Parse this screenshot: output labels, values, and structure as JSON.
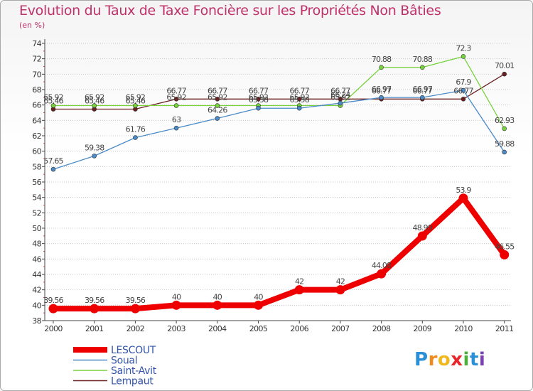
{
  "chart_data": {
    "type": "line",
    "title": "Evolution du Taux de Taxe Foncière sur les Propriétés Non Bâties",
    "ylabel": "(en %)",
    "xlabel": "",
    "categories": [
      "2000",
      "2001",
      "2002",
      "2003",
      "2004",
      "2005",
      "2006",
      "2007",
      "2008",
      "2009",
      "2010",
      "2011"
    ],
    "ylim": [
      38,
      74
    ],
    "yticks": [
      38,
      40,
      42,
      44,
      46,
      48,
      50,
      52,
      54,
      56,
      58,
      60,
      62,
      64,
      66,
      68,
      70,
      72,
      74
    ],
    "grid": "horizontal dotted",
    "legend_position": "bottom-left",
    "series": [
      {
        "name": "LESCOUT",
        "color": "#ee0000",
        "values": [
          39.56,
          39.56,
          39.56,
          40,
          40,
          40,
          42,
          42,
          44.08,
          48.99,
          53.9,
          46.55
        ],
        "labels": [
          "39.56",
          "39.56",
          "39.56",
          "40",
          "40",
          "40",
          "42",
          "42",
          "44.08",
          "48.99",
          "53.9",
          "46.55"
        ]
      },
      {
        "name": "Soual",
        "color": "#4a8bc8",
        "values": [
          57.65,
          59.38,
          61.76,
          63,
          64.26,
          65.58,
          65.58,
          66.24,
          66.97,
          66.97,
          67.9,
          59.88
        ],
        "labels": [
          "57.65",
          "59.38",
          "61.76",
          "63",
          "64.26",
          "65.58",
          "65.58",
          "66.24",
          "66.97",
          "66.97",
          "67.9",
          "59.88"
        ]
      },
      {
        "name": "Saint-Avit",
        "color": "#77d23c",
        "values": [
          65.92,
          65.92,
          65.92,
          65.92,
          65.92,
          65.92,
          65.92,
          65.92,
          70.88,
          70.88,
          72.3,
          62.93
        ],
        "labels": [
          "65.92",
          "65.92",
          "65.92",
          "65.92",
          "65.92",
          "65.92",
          "65.92",
          "65.92",
          "70.88",
          "70.88",
          "72.3",
          "62.93"
        ]
      },
      {
        "name": "Lempaut",
        "color": "#6b1f1f",
        "values": [
          65.46,
          65.46,
          65.46,
          66.77,
          66.77,
          66.77,
          66.77,
          66.77,
          66.77,
          66.77,
          66.77,
          70.01
        ],
        "labels": [
          "65.46",
          "65.46",
          "65.46",
          "66.77",
          "66.77",
          "66.77",
          "66.77",
          "66.77",
          "66.77",
          "66.77",
          "66.77",
          "70.01"
        ]
      }
    ]
  },
  "logo": {
    "letters": [
      "P",
      "r",
      "o",
      "x",
      "i",
      "t",
      "i"
    ],
    "colors": [
      "#2a8fd6",
      "#f08a1c",
      "#f0b81c",
      "#e8262a",
      "#4caf3a",
      "#2a8fd6",
      "#7a3fb0"
    ]
  }
}
